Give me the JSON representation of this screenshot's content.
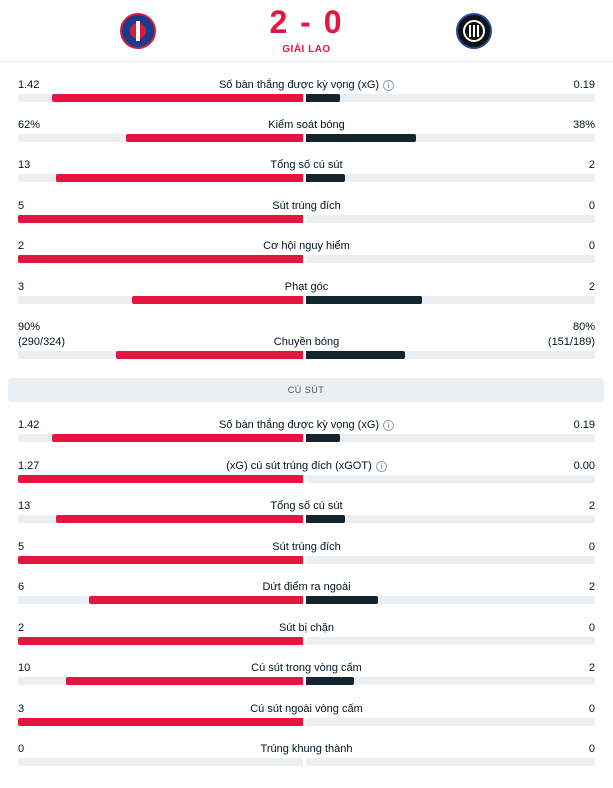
{
  "match": {
    "score": "2 - 0",
    "period": "GIẢI LAO",
    "home_logo": "psg-crest-icon",
    "away_logo": "inter-crest-icon"
  },
  "colors": {
    "home": "#e5153f",
    "away": "#13242e",
    "track": "#eceff1"
  },
  "overview": [
    {
      "label": "Số bàn thắng được kỳ vọng (xG)",
      "info": true,
      "home": "1.42",
      "away": "0.19",
      "home_val": 1.42,
      "away_val": 0.19
    },
    {
      "label": "Kiểm soát bóng",
      "info": false,
      "home": "62%",
      "away": "38%",
      "home_val": 62,
      "away_val": 38
    },
    {
      "label": "Tổng số cú sút",
      "info": false,
      "home": "13",
      "away": "2",
      "home_val": 13,
      "away_val": 2
    },
    {
      "label": "Sút trúng đích",
      "info": false,
      "home": "5",
      "away": "0",
      "home_val": 5,
      "away_val": 0
    },
    {
      "label": "Cơ hội nguy hiểm",
      "info": false,
      "home": "2",
      "away": "0",
      "home_val": 2,
      "away_val": 0
    },
    {
      "label": "Phạt góc",
      "info": false,
      "home": "3",
      "away": "2",
      "home_val": 3,
      "away_val": 2
    },
    {
      "label": "Chuyền bóng",
      "info": false,
      "home": "90%",
      "home_sub": "(290/324)",
      "away": "80%",
      "away_sub": "(151/189)",
      "home_val": 290,
      "away_val": 151
    }
  ],
  "shots_section": {
    "title": "CÚ SÚT",
    "stats": [
      {
        "label": "Số bàn thắng được kỳ vọng (xG)",
        "info": true,
        "home": "1.42",
        "away": "0.19",
        "home_val": 1.42,
        "away_val": 0.19
      },
      {
        "label": "(xG) cú sút trúng đích (xGOT)",
        "info": true,
        "home": "1.27",
        "away": "0.00",
        "home_val": 1.27,
        "away_val": 0.0
      },
      {
        "label": "Tổng số cú sút",
        "info": false,
        "home": "13",
        "away": "2",
        "home_val": 13,
        "away_val": 2
      },
      {
        "label": "Sút trúng đích",
        "info": false,
        "home": "5",
        "away": "0",
        "home_val": 5,
        "away_val": 0
      },
      {
        "label": "Dứt điểm ra ngoài",
        "info": false,
        "home": "6",
        "away": "2",
        "home_val": 6,
        "away_val": 2
      },
      {
        "label": "Sút bị chặn",
        "info": false,
        "home": "2",
        "away": "0",
        "home_val": 2,
        "away_val": 0
      },
      {
        "label": "Cú sút trong vòng cấm",
        "info": false,
        "home": "10",
        "away": "2",
        "home_val": 10,
        "away_val": 2
      },
      {
        "label": "Cú sút ngoài vòng cấm",
        "info": false,
        "home": "3",
        "away": "0",
        "home_val": 3,
        "away_val": 0
      },
      {
        "label": "Trúng khung thành",
        "info": false,
        "home": "0",
        "away": "0",
        "home_val": 0,
        "away_val": 0
      }
    ]
  }
}
